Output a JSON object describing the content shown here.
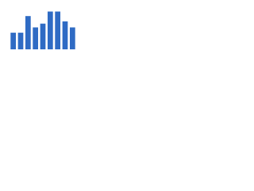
{
  "chart_data": {
    "type": "bar",
    "categories": [
      null,
      null,
      null,
      null,
      null,
      null,
      null,
      null,
      null
    ],
    "values": [
      22,
      22,
      44,
      29,
      34,
      50,
      50,
      37,
      29
    ],
    "color": "#2f6bc4",
    "ylim": [
      0,
      60
    ]
  }
}
